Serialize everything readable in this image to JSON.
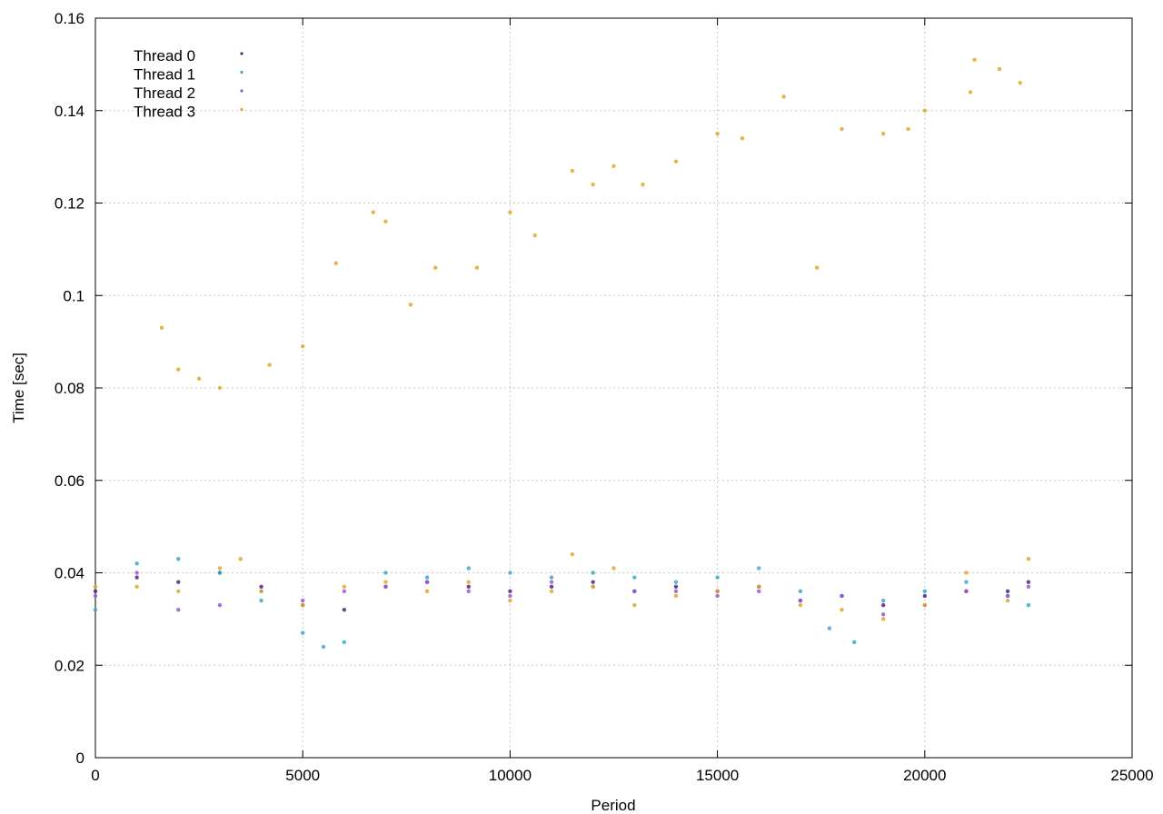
{
  "chart_data": {
    "type": "scatter",
    "title": "",
    "xlabel": "Period",
    "ylabel": "Time [sec]",
    "xlim": [
      0,
      25000
    ],
    "ylim": [
      0,
      0.16
    ],
    "xticks": [
      "0",
      "5000",
      "10000",
      "15000",
      "20000",
      "25000"
    ],
    "yticks": [
      "0",
      "0.02",
      "0.04",
      "0.06",
      "0.08",
      "0.1",
      "0.12",
      "0.14",
      "0.16"
    ],
    "grid": true,
    "legend_position": "top-left",
    "series": [
      {
        "name": "Thread 0",
        "color": "#4b2a78",
        "x": [
          0,
          1000,
          2000,
          3000,
          4000,
          5000,
          6000,
          7000,
          8000,
          9000,
          10000,
          11000,
          12000,
          13000,
          14000,
          15000,
          16000,
          17000,
          18000,
          19000,
          20000,
          21000,
          22000,
          22500
        ],
        "y": [
          0.036,
          0.039,
          0.038,
          0.04,
          0.037,
          0.033,
          0.032,
          0.037,
          0.038,
          0.037,
          0.036,
          0.037,
          0.038,
          0.036,
          0.037,
          0.036,
          0.037,
          0.034,
          0.035,
          0.033,
          0.035,
          0.036,
          0.036,
          0.038
        ]
      },
      {
        "name": "Thread 1",
        "color": "#3aa8c9",
        "x": [
          0,
          1000,
          2000,
          3000,
          4000,
          5000,
          5500,
          6000,
          7000,
          8000,
          9000,
          10000,
          11000,
          12000,
          13000,
          14000,
          15000,
          16000,
          17000,
          17700,
          18300,
          19000,
          20000,
          21000,
          22000,
          22500
        ],
        "y": [
          0.032,
          0.042,
          0.043,
          0.04,
          0.034,
          0.027,
          0.024,
          0.025,
          0.04,
          0.039,
          0.041,
          0.04,
          0.039,
          0.04,
          0.039,
          0.038,
          0.039,
          0.041,
          0.036,
          0.028,
          0.025,
          0.034,
          0.036,
          0.038,
          0.035,
          0.033
        ]
      },
      {
        "name": "Thread 2",
        "color": "#9b59d0",
        "x": [
          0,
          1000,
          2000,
          3000,
          4000,
          5000,
          6000,
          7000,
          8000,
          9000,
          10000,
          11000,
          12000,
          13000,
          14000,
          15000,
          16000,
          17000,
          18000,
          19000,
          20000,
          21000,
          22000,
          22500
        ],
        "y": [
          0.035,
          0.04,
          0.032,
          0.033,
          0.036,
          0.034,
          0.036,
          0.037,
          0.038,
          0.036,
          0.035,
          0.038,
          0.037,
          0.036,
          0.036,
          0.035,
          0.036,
          0.034,
          0.035,
          0.031,
          0.033,
          0.036,
          0.035,
          0.037
        ]
      },
      {
        "name": "Thread 3",
        "color": "#e3a62c",
        "x": [
          0,
          1000,
          2000,
          3000,
          3500,
          4000,
          5000,
          6000,
          7000,
          8000,
          9000,
          10000,
          11000,
          11500,
          12000,
          12500,
          13000,
          14000,
          15000,
          16000,
          17000,
          18000,
          19000,
          20000,
          21000,
          22000,
          22500
        ],
        "y": [
          0.037,
          0.037,
          0.036,
          0.041,
          0.043,
          0.036,
          0.033,
          0.037,
          0.038,
          0.036,
          0.038,
          0.034,
          0.036,
          0.044,
          0.037,
          0.041,
          0.033,
          0.035,
          0.036,
          0.037,
          0.033,
          0.032,
          0.03,
          0.033,
          0.04,
          0.034,
          0.043
        ]
      },
      {
        "name": "",
        "color": "#e3a62c",
        "x": [
          1600,
          2000,
          2500,
          3000,
          4200,
          5000,
          5800,
          6700,
          7000,
          7600,
          8200,
          9200,
          10000,
          10600,
          11500,
          12000,
          12500,
          13200,
          14000,
          15000,
          15600,
          16600,
          17400,
          18000,
          19000,
          19600,
          20000,
          21100,
          21200,
          21800,
          22300
        ],
        "y": [
          0.093,
          0.084,
          0.082,
          0.08,
          0.085,
          0.089,
          0.107,
          0.118,
          0.116,
          0.098,
          0.106,
          0.106,
          0.118,
          0.113,
          0.127,
          0.124,
          0.128,
          0.124,
          0.129,
          0.135,
          0.134,
          0.143,
          0.106,
          0.136,
          0.135,
          0.136,
          0.14,
          0.144,
          0.151,
          0.149,
          0.146
        ]
      }
    ]
  }
}
